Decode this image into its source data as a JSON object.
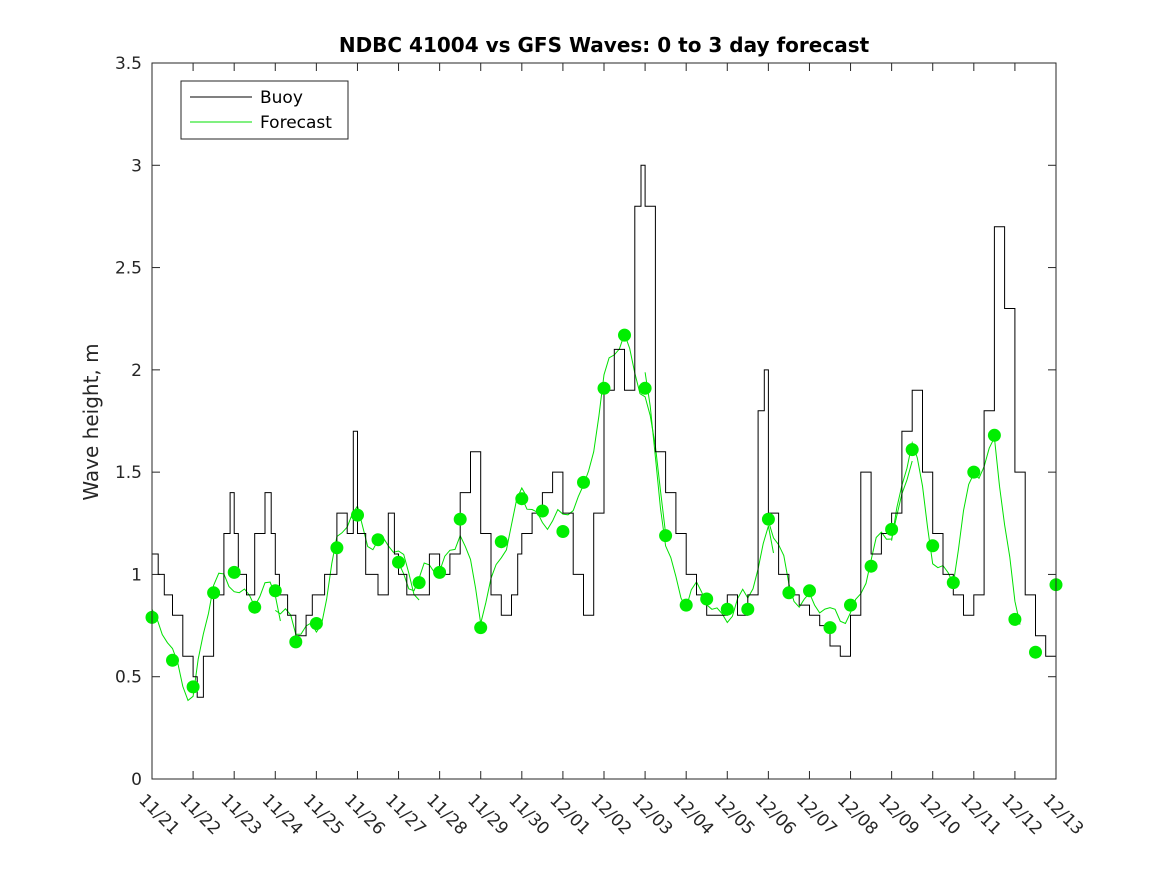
{
  "chart_data": {
    "type": "line",
    "title": "NDBC 41004 vs GFS Waves: 0 to 3 day forecast",
    "xlabel": "",
    "ylabel": "Wave height, m",
    "xlim": [
      0,
      22
    ],
    "ylim": [
      0,
      3.5
    ],
    "yticks": [
      0,
      0.5,
      1,
      1.5,
      2,
      2.5,
      3,
      3.5
    ],
    "ytick_labels": [
      "0",
      "0.5",
      "1",
      "1.5",
      "2",
      "2.5",
      "3",
      "3.5"
    ],
    "xtick_labels": [
      "11/21",
      "11/22",
      "11/23",
      "11/24",
      "11/25",
      "11/26",
      "11/27",
      "11/28",
      "11/29",
      "11/30",
      "12/01",
      "12/02",
      "12/03",
      "12/04",
      "12/05",
      "12/06",
      "12/07",
      "12/08",
      "12/09",
      "12/10",
      "12/11",
      "12/12",
      "12/13"
    ],
    "legend": {
      "position": "top-left",
      "entries": [
        {
          "label": "Buoy",
          "color": "#000000"
        },
        {
          "label": "Forecast",
          "color": "#00e000"
        }
      ]
    },
    "colors": {
      "buoy": "#000000",
      "forecast": "#00e000",
      "marker": "#00ee00"
    },
    "series": [
      {
        "name": "Buoy",
        "x": [
          0,
          0.15,
          0.3,
          0.5,
          0.75,
          1,
          1.1,
          1.25,
          1.5,
          1.75,
          1.9,
          2,
          2.1,
          2.3,
          2.5,
          2.75,
          2.9,
          3,
          3.1,
          3.3,
          3.5,
          3.75,
          3.9,
          4,
          4.2,
          4.5,
          4.75,
          4.9,
          5,
          5.2,
          5.5,
          5.75,
          5.9,
          6,
          6.2,
          6.5,
          6.75,
          7,
          7.25,
          7.5,
          7.75,
          8,
          8.25,
          8.5,
          8.75,
          8.9,
          9,
          9.25,
          9.5,
          9.75,
          10,
          10.25,
          10.5,
          10.75,
          11,
          11.25,
          11.5,
          11.75,
          11.9,
          12,
          12.25,
          12.5,
          12.75,
          13,
          13.25,
          13.5,
          13.75,
          14,
          14.25,
          14.5,
          14.75,
          14.9,
          15,
          15.25,
          15.5,
          15.75,
          16,
          16.25,
          16.5,
          16.75,
          17,
          17.25,
          17.5,
          17.75,
          18,
          18.25,
          18.5,
          18.75,
          19,
          19.25,
          19.5,
          19.75,
          20,
          20.25,
          20.5,
          20.75,
          21,
          21.25,
          21.5,
          21.75,
          22
        ],
        "y": [
          1.1,
          1.0,
          0.9,
          0.8,
          0.6,
          0.5,
          0.4,
          0.6,
          0.9,
          1.2,
          1.4,
          1.2,
          1.0,
          0.9,
          1.2,
          1.4,
          1.2,
          1.0,
          0.9,
          0.8,
          0.7,
          0.8,
          0.9,
          0.9,
          1.0,
          1.3,
          1.2,
          1.7,
          1.2,
          1.0,
          0.9,
          1.3,
          1.1,
          1.0,
          0.9,
          0.9,
          1.1,
          1.0,
          1.1,
          1.4,
          1.6,
          1.2,
          0.9,
          0.8,
          0.9,
          1.1,
          1.2,
          1.3,
          1.4,
          1.5,
          1.3,
          1.0,
          0.8,
          1.3,
          1.9,
          2.1,
          1.9,
          2.8,
          3.0,
          2.8,
          1.6,
          1.4,
          1.2,
          1.0,
          0.9,
          0.8,
          0.8,
          0.9,
          0.8,
          0.9,
          1.8,
          2.0,
          1.3,
          1.0,
          0.9,
          0.85,
          0.8,
          0.75,
          0.65,
          0.6,
          0.8,
          1.5,
          1.1,
          1.2,
          1.3,
          1.7,
          1.9,
          1.5,
          1.2,
          1.0,
          0.9,
          0.8,
          0.9,
          1.8,
          2.7,
          2.3,
          1.5,
          0.9,
          0.7,
          0.6,
          0.8
        ]
      },
      {
        "name": "Forecast",
        "x": [
          0,
          0.5,
          1,
          1.5,
          2,
          2.5,
          3,
          3.5,
          4,
          4.5,
          5,
          5.5,
          6,
          6.5,
          7,
          7.5,
          8,
          8.5,
          9,
          9.5,
          10,
          10.5,
          11,
          11.5,
          12,
          12.5,
          13,
          13.5,
          14,
          14.5,
          15,
          15.5,
          16,
          16.5,
          17,
          17.5,
          18,
          18.5,
          19,
          19.5,
          20,
          20.5,
          21,
          21.5,
          22
        ],
        "y": [
          0.79,
          0.58,
          0.45,
          0.91,
          1.01,
          0.84,
          0.92,
          0.67,
          0.76,
          1.13,
          1.29,
          1.17,
          1.06,
          0.96,
          1.01,
          1.27,
          0.74,
          1.16,
          1.37,
          1.31,
          1.21,
          1.45,
          1.91,
          2.17,
          1.91,
          1.19,
          0.85,
          0.88,
          0.83,
          0.83,
          1.27,
          0.91,
          0.92,
          0.74,
          0.85,
          1.04,
          1.22,
          1.61,
          1.14,
          0.96,
          1.5,
          1.68,
          0.78,
          0.62,
          0.95
        ]
      }
    ]
  }
}
